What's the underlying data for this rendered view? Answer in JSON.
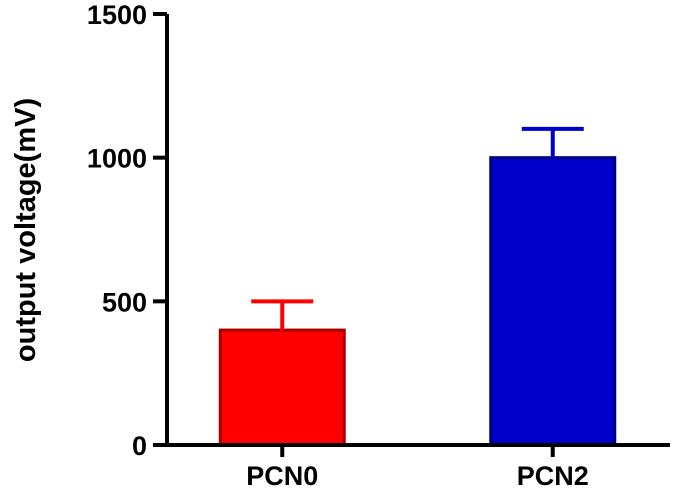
{
  "chart_data": {
    "type": "bar",
    "title": "",
    "xlabel": "",
    "ylabel": "output voltage(mV)",
    "ylim": [
      0,
      1500
    ],
    "yticks": [
      0,
      500,
      1000,
      1500
    ],
    "categories": [
      "PCN0",
      "PCN2"
    ],
    "values": [
      400,
      1000
    ],
    "error_upper": [
      100,
      100
    ],
    "colors": [
      "#ff0000",
      "#0000cc"
    ],
    "edge_colors": [
      "#aa0000",
      "#000080"
    ],
    "grid": false,
    "legend": "none"
  }
}
